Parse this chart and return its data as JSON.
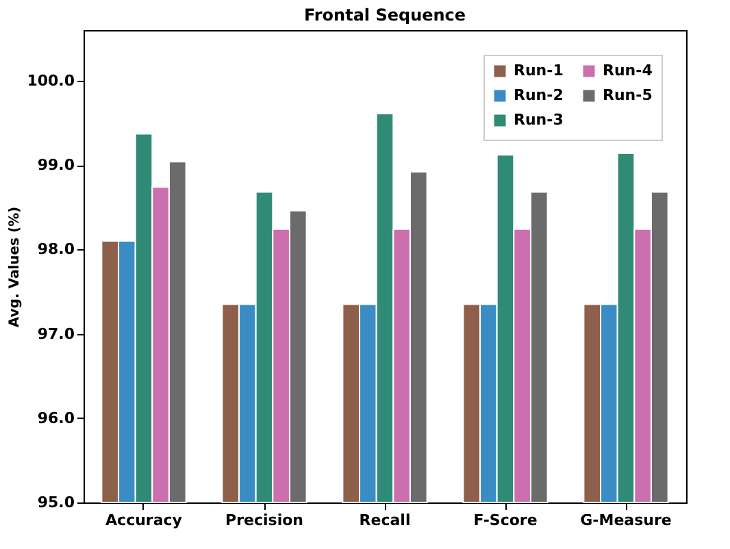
{
  "chart_data": {
    "type": "bar",
    "title": "Frontal Sequence",
    "ylabel": "Avg. Values (%)",
    "categories": [
      "Accuracy",
      "Precision",
      "Recall",
      "F-Score",
      "G-Measure"
    ],
    "series": [
      {
        "name": "Run-1",
        "color": "#8e5f4a",
        "values": [
          98.1,
          97.35,
          97.35,
          97.35,
          97.35
        ]
      },
      {
        "name": "Run-2",
        "color": "#3a8cc4",
        "values": [
          98.1,
          97.35,
          97.35,
          97.35,
          97.35
        ]
      },
      {
        "name": "Run-3",
        "color": "#2f8a76",
        "values": [
          99.37,
          98.68,
          99.61,
          99.12,
          99.14
        ]
      },
      {
        "name": "Run-4",
        "color": "#cc6fae",
        "values": [
          98.74,
          98.24,
          98.24,
          98.24,
          98.24
        ]
      },
      {
        "name": "Run-5",
        "color": "#6b6b6b",
        "values": [
          99.04,
          98.46,
          98.92,
          98.68,
          98.68
        ]
      }
    ],
    "ylim": [
      95.0,
      100.6
    ],
    "yticks": [
      {
        "value": 95,
        "label": "95.0"
      },
      {
        "value": 96,
        "label": "96.0"
      },
      {
        "value": 97,
        "label": "97.0"
      },
      {
        "value": 98,
        "label": "98.0"
      },
      {
        "value": 99,
        "label": "99.0"
      },
      {
        "value": 100,
        "label": "100.0"
      }
    ],
    "grid": false,
    "legend": "top right"
  }
}
